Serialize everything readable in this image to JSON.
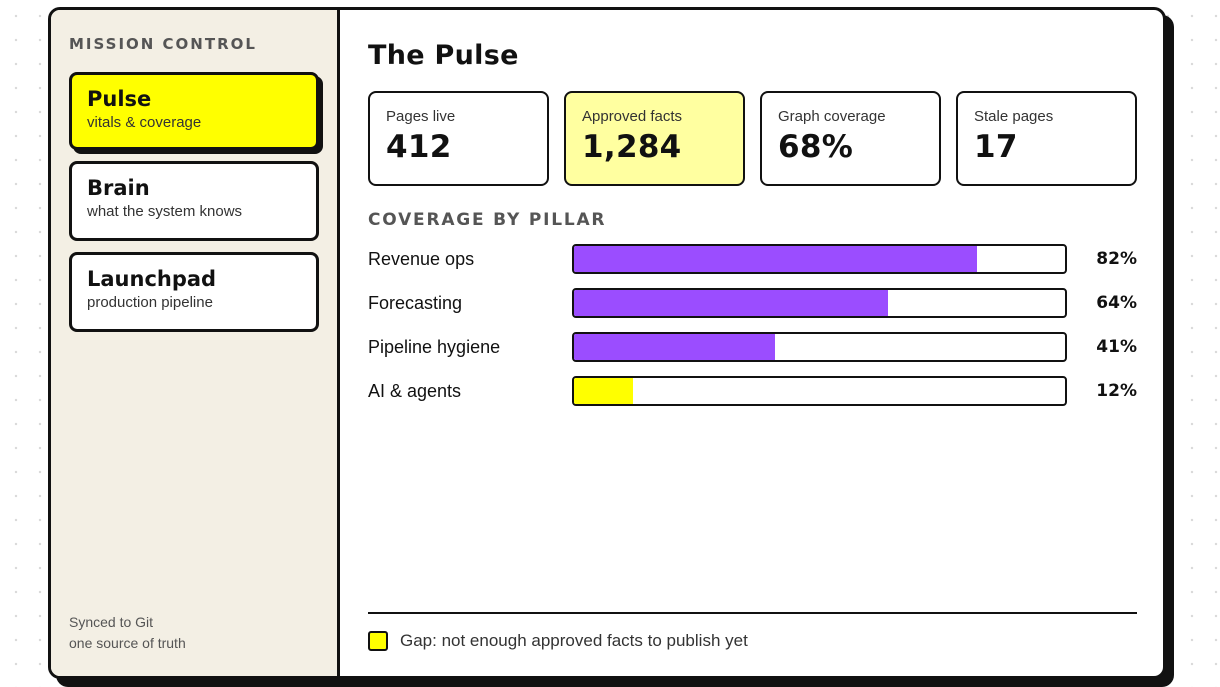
{
  "sidebar": {
    "title": "MISSION CONTROL",
    "items": [
      {
        "label": "Pulse",
        "sub": "vitals & coverage",
        "active": true
      },
      {
        "label": "Brain",
        "sub": "what the system knows",
        "active": false
      },
      {
        "label": "Launchpad",
        "sub": "production pipeline",
        "active": false
      }
    ],
    "footer": {
      "line1": "Synced to Git",
      "line2": "one source of truth"
    }
  },
  "main": {
    "title": "The Pulse",
    "stats": [
      {
        "label": "Pages live",
        "value": "412"
      },
      {
        "label": "Approved facts",
        "value": "1,284",
        "highlight": true
      },
      {
        "label": "Graph coverage",
        "value": "68%"
      },
      {
        "label": "Stale pages",
        "value": "17"
      }
    ],
    "section_title": "COVERAGE BY PILLAR",
    "legend": "Gap: not enough approved facts to publish yet"
  },
  "colors": {
    "accent": "#ffff00",
    "bar_fill": "#9b4dff",
    "gap_fill": "#ffff00",
    "highlight_card": "#ffffa0",
    "sidebar_bg": "#f3efe4"
  },
  "chart_data": {
    "type": "bar",
    "orientation": "horizontal",
    "categories": [
      "Revenue ops",
      "Forecasting",
      "Pipeline hygiene",
      "AI & agents"
    ],
    "values": [
      82,
      64,
      41,
      12
    ],
    "labels": [
      "82%",
      "64%",
      "41%",
      "12%"
    ],
    "gap": [
      false,
      false,
      false,
      true
    ],
    "ylim": [
      0,
      100
    ]
  }
}
